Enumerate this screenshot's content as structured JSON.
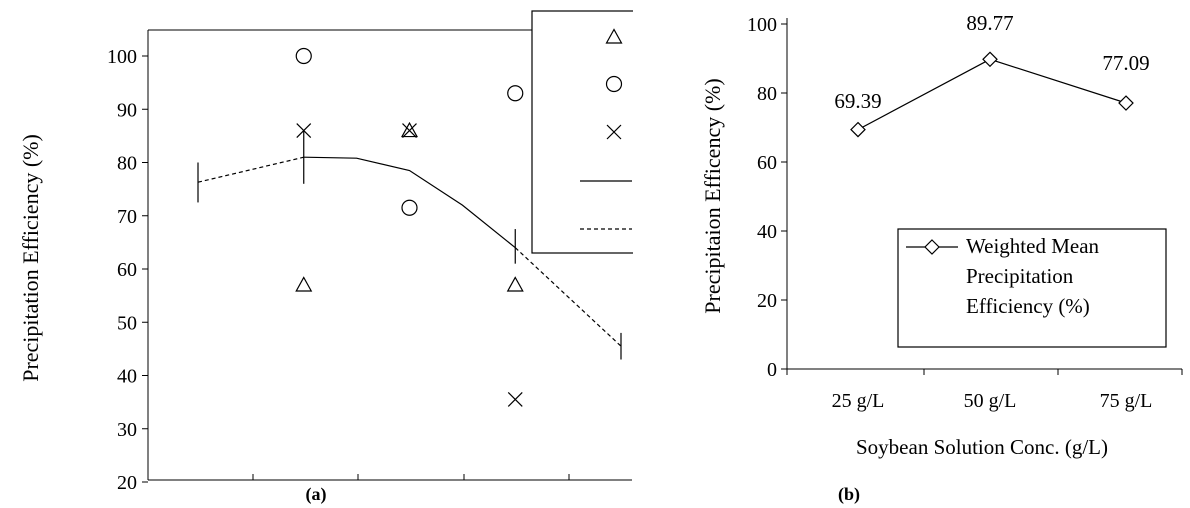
{
  "chart_data": [
    {
      "type": "scatter",
      "panel_label": "(a)",
      "ylabel": "Precipitation Efficiency (%)",
      "ylim": [
        20,
        105
      ],
      "yticks": [
        20,
        30,
        40,
        50,
        60,
        70,
        80,
        90,
        100
      ],
      "x": [
        0,
        1,
        2,
        3,
        4
      ],
      "xlim": [
        0,
        4
      ],
      "scatter_series": [
        {
          "marker": "triangle",
          "points": [
            [
              1,
              57
            ],
            [
              2,
              86
            ],
            [
              3,
              57
            ]
          ]
        },
        {
          "marker": "circle",
          "points": [
            [
              1,
              100
            ],
            [
              2,
              71.5
            ],
            [
              3,
              93
            ]
          ]
        },
        {
          "marker": "cross",
          "points": [
            [
              1,
              86
            ],
            [
              2,
              86
            ],
            [
              3,
              35.5
            ]
          ]
        }
      ],
      "line_series": [
        {
          "style": "solid",
          "points": [
            [
              1,
              81
            ],
            [
              1.5,
              80.8
            ],
            [
              2,
              78.5
            ],
            [
              2.5,
              72
            ],
            [
              3,
              64
            ]
          ]
        },
        {
          "style": "dashed",
          "points": [
            [
              0,
              76.3
            ],
            [
              1,
              81
            ]
          ]
        },
        {
          "style": "dashed",
          "points": [
            [
              3,
              64
            ],
            [
              4,
              45.5
            ]
          ]
        }
      ],
      "error_bars": [
        {
          "x": 0,
          "low": 72.5,
          "high": 80
        },
        {
          "x": 1,
          "low": 76,
          "high": 86
        },
        {
          "x": 3,
          "low": 61,
          "high": 67.5
        },
        {
          "x": 4,
          "low": 43,
          "high": 48
        }
      ],
      "legend": {
        "placement": "top-right",
        "entries": [
          {
            "symbol": "triangle",
            "label": ""
          },
          {
            "symbol": "circle",
            "label": ""
          },
          {
            "symbol": "cross",
            "label": ""
          },
          {
            "symbol": "solid",
            "label": ""
          },
          {
            "symbol": "dashed",
            "label": ""
          }
        ]
      }
    },
    {
      "type": "line",
      "panel_label": "(b)",
      "ylabel": "Precipitaion Efficency (%)",
      "xlabel": "Soybean Solution Conc. (g/L)",
      "categories": [
        "25 g/L",
        "50 g/L",
        "75 g/L"
      ],
      "ylim": [
        0,
        100
      ],
      "yticks": [
        0,
        20,
        40,
        60,
        80,
        100
      ],
      "series": [
        {
          "name": "Weighted Mean Precipitation Efficiency (%)",
          "marker": "diamond",
          "values": [
            69.39,
            89.77,
            77.09
          ],
          "data_labels": [
            "69.39",
            "89.77",
            "77.09"
          ]
        }
      ],
      "legend": {
        "placement": "bottom-right",
        "lines": [
          "Weighted Mean",
          "Precipitation",
          "Efficiency (%)"
        ]
      }
    }
  ],
  "colors": {
    "ink": "#000000",
    "background": "#ffffff"
  }
}
